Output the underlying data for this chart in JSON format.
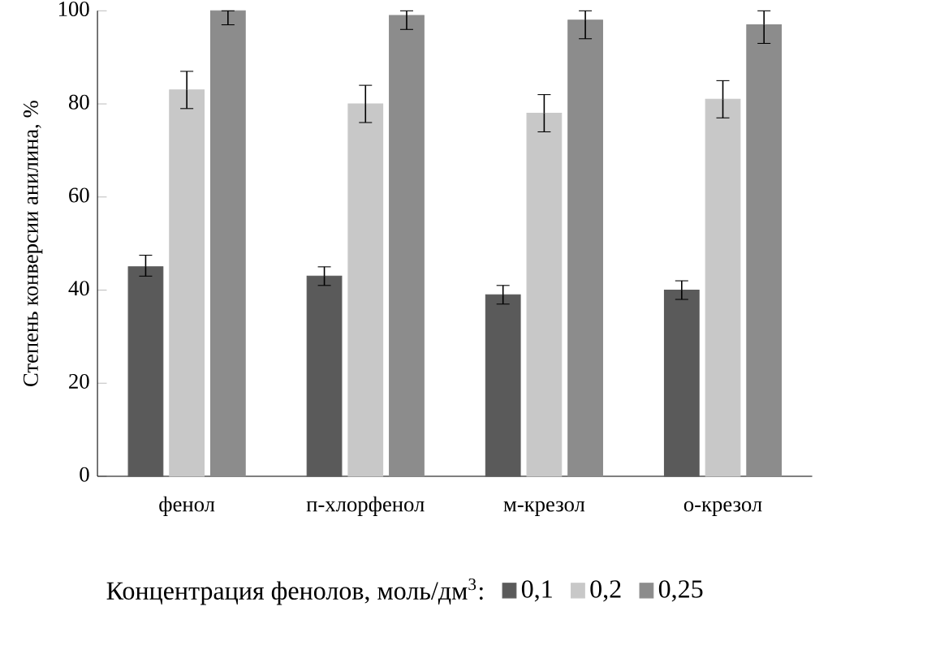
{
  "chart_data": {
    "type": "bar",
    "ylabel": "Степень конверсии анилина, %",
    "legend_title": "Концентрация фенолов, моль/дм$^{3}$:",
    "categories": [
      "фенол",
      "п-хлорфенол",
      "м-крезол",
      "о-крезол"
    ],
    "series": [
      {
        "name": "0,1",
        "color": "#5a5a5a",
        "values": [
          45,
          43,
          39,
          40
        ],
        "errors": [
          [
            43,
            47.5
          ],
          [
            41,
            45
          ],
          [
            37,
            41
          ],
          [
            38,
            42
          ]
        ]
      },
      {
        "name": "0,2",
        "color": "#c8c8c8",
        "values": [
          83,
          80,
          78,
          81
        ],
        "errors": [
          [
            79,
            87
          ],
          [
            76,
            84
          ],
          [
            74,
            82
          ],
          [
            77,
            85
          ]
        ]
      },
      {
        "name": "0,25",
        "color": "#8c8c8c",
        "values": [
          100,
          99,
          98,
          97
        ],
        "errors": [
          [
            97,
            100
          ],
          [
            96,
            100
          ],
          [
            94,
            100
          ],
          [
            93,
            100
          ]
        ]
      }
    ],
    "ylim": [
      0,
      100
    ],
    "yticks": [
      0,
      20,
      40,
      60,
      80,
      100
    ],
    "grid": false,
    "legend": "bottom"
  }
}
